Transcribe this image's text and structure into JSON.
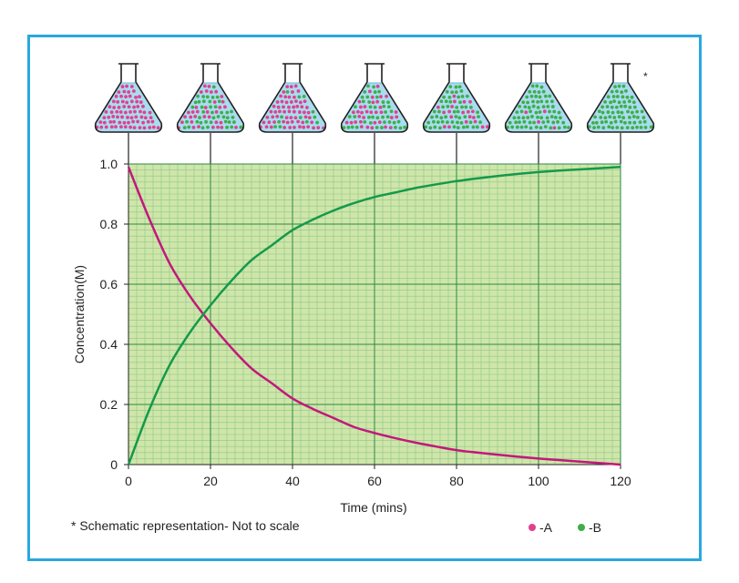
{
  "chart_data": {
    "type": "line",
    "xlabel": "Time (mins)",
    "ylabel": "Concentration(M)",
    "xlim": [
      0,
      120
    ],
    "ylim": [
      0,
      1.0
    ],
    "x_ticks": [
      "0",
      "20",
      "40",
      "60",
      "80",
      "100",
      "120"
    ],
    "y_ticks": [
      "0",
      "0.2",
      "0.4",
      "0.6",
      "0.8",
      "1.0"
    ],
    "grid": true,
    "series": [
      {
        "name": "A",
        "color": "#c2187c",
        "x": [
          0,
          5,
          10,
          15,
          20,
          25,
          30,
          35,
          40,
          45,
          50,
          55,
          60,
          65,
          70,
          75,
          80,
          85,
          90,
          95,
          100,
          105,
          110,
          115,
          120
        ],
        "y": [
          0.99,
          0.82,
          0.67,
          0.56,
          0.47,
          0.39,
          0.32,
          0.27,
          0.22,
          0.185,
          0.155,
          0.125,
          0.105,
          0.088,
          0.073,
          0.06,
          0.048,
          0.04,
          0.033,
          0.026,
          0.02,
          0.015,
          0.01,
          0.005,
          0.0
        ]
      },
      {
        "name": "B",
        "color": "#14994a",
        "x": [
          0,
          5,
          10,
          15,
          20,
          25,
          30,
          35,
          40,
          45,
          50,
          55,
          60,
          65,
          70,
          75,
          80,
          85,
          90,
          95,
          100,
          105,
          110,
          115,
          120
        ],
        "y": [
          0.0,
          0.18,
          0.33,
          0.44,
          0.53,
          0.61,
          0.68,
          0.73,
          0.78,
          0.815,
          0.845,
          0.87,
          0.89,
          0.905,
          0.92,
          0.932,
          0.943,
          0.952,
          0.96,
          0.967,
          0.973,
          0.978,
          0.982,
          0.986,
          0.99
        ]
      }
    ],
    "flasks": [
      {
        "time": 0,
        "fraction_b": 0.0
      },
      {
        "time": 20,
        "fraction_b": 0.5
      },
      {
        "time": 40,
        "fraction_b": 0.25
      },
      {
        "time": 60,
        "fraction_b": 0.5
      },
      {
        "time": 80,
        "fraction_b": 0.8
      },
      {
        "time": 100,
        "fraction_b": 0.93
      },
      {
        "time": 120,
        "fraction_b": 1.0
      }
    ],
    "flask_note": "*",
    "footnote": "* Schematic representation- Not to scale",
    "legend": [
      {
        "label": "-A",
        "color": "#e0418f"
      },
      {
        "label": "-B",
        "color": "#3fae49"
      }
    ],
    "legend_position": "bottom-right",
    "colors": {
      "frame": "#29a8df",
      "plot_bg": "#cfe6a8",
      "grid_minor": "#8cc68f",
      "grid_major": "#2a8a4a",
      "liquid": "#a9dcef"
    }
  }
}
